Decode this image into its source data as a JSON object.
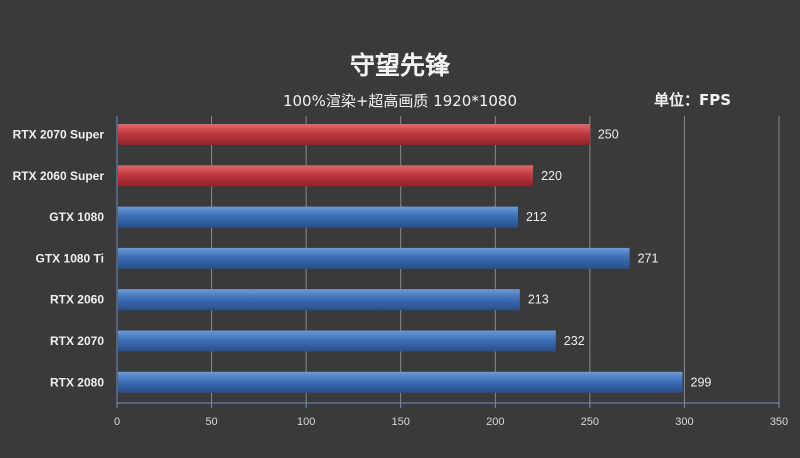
{
  "header": {
    "title": "守望先锋",
    "subtitle": "100%渲染+超高画质 1920*1080",
    "unit": "单位：FPS"
  },
  "colors": {
    "background": "#3a3a3a",
    "bar_red": "#c0393e",
    "bar_blue": "#3c6fb5",
    "grid": "#8a8a8a",
    "axis": "#6f8fbf"
  },
  "chart_data": {
    "type": "bar",
    "orientation": "horizontal",
    "title": "守望先锋",
    "subtitle": "100%渲染+超高画质 1920*1080",
    "categories": [
      "RTX 2070 Super",
      "RTX 2060 Super",
      "GTX 1080",
      "GTX 1080 Ti",
      "RTX 2060",
      "RTX 2070",
      "RTX 2080"
    ],
    "values": [
      250,
      220,
      212,
      271,
      213,
      232,
      299
    ],
    "bar_colors": [
      "red",
      "red",
      "blue",
      "blue",
      "blue",
      "blue",
      "blue"
    ],
    "xlim": [
      0,
      350
    ],
    "xticks": [
      0,
      50,
      100,
      150,
      200,
      250,
      300,
      350
    ],
    "grid": true,
    "data_labels": true
  }
}
